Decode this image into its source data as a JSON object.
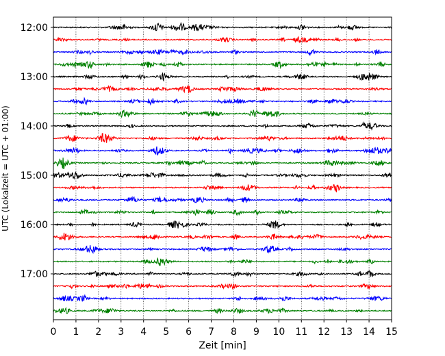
{
  "chart_data": {
    "type": "line",
    "xlabel": "Zeit  [min]",
    "ylabel": "UTC (Lokalzeit = UTC + 01:00)",
    "xlim": [
      0,
      15
    ],
    "x_ticks": [
      "0",
      "1",
      "2",
      "3",
      "4",
      "5",
      "6",
      "7",
      "8",
      "9",
      "10",
      "11",
      "12",
      "13",
      "14",
      "15"
    ],
    "y_tick_labels": [
      "12:00",
      "13:00",
      "14:00",
      "15:00",
      "16:00",
      "17:00"
    ],
    "trace_start_times": [
      "12:00",
      "12:15",
      "12:30",
      "12:45",
      "13:00",
      "13:15",
      "13:30",
      "13:45",
      "14:00",
      "14:15",
      "14:30",
      "14:45",
      "15:00",
      "15:15",
      "15:30",
      "15:45",
      "16:00",
      "16:15",
      "16:30",
      "16:45",
      "17:00",
      "17:15",
      "17:30",
      "17:45"
    ],
    "trace_minutes": 15,
    "colors": [
      "#000000",
      "#ff0000",
      "#0000ff",
      "#008000"
    ],
    "x_grid": true
  }
}
